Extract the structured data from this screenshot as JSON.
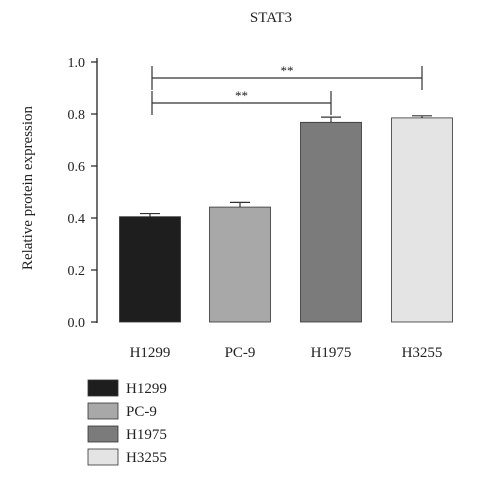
{
  "chart_data": {
    "type": "bar",
    "title": "STAT3",
    "xlabel": "",
    "ylabel": "Relative protein expression",
    "ylim": [
      0,
      1.0
    ],
    "yticks": [
      "0.0",
      "0.2",
      "0.4",
      "0.6",
      "0.8",
      "1.0"
    ],
    "categories": [
      "H1299",
      "PC-9",
      "H1975",
      "H3255"
    ],
    "values": [
      0.405,
      0.442,
      0.768,
      0.785
    ],
    "errors": [
      0.012,
      0.018,
      0.02,
      0.008
    ],
    "colors": [
      "#1e1e1e",
      "#a8a8a8",
      "#7b7b7b",
      "#e4e4e4"
    ],
    "legend_position": "bottom-left",
    "grid": false,
    "significance": [
      {
        "from": "H1299",
        "to": "H1975",
        "label": "**"
      },
      {
        "from": "H1299",
        "to": "H3255",
        "label": "**"
      }
    ]
  }
}
